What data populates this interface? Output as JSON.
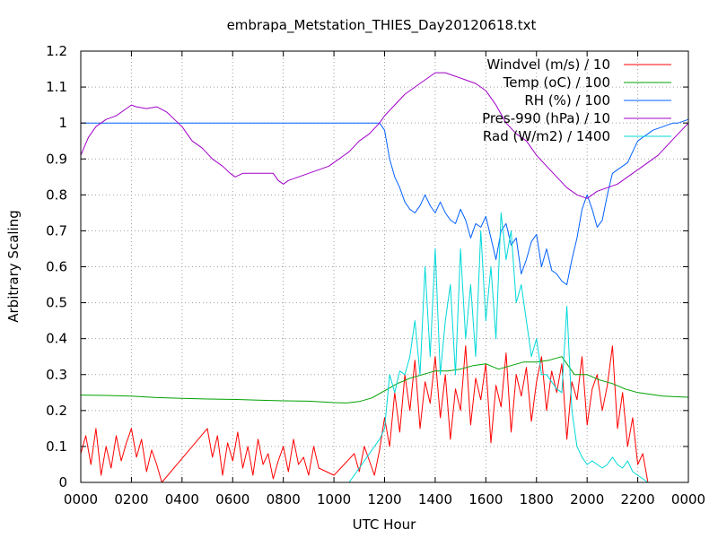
{
  "chart_data": {
    "type": "line",
    "title": "embrapa_Metstation_THIES_Day20120618.txt",
    "xlabel": "UTC Hour",
    "ylabel": "Arbitrary Scaling",
    "xlim": [
      0,
      24
    ],
    "ylim": [
      0,
      1.2
    ],
    "xticks": [
      {
        "v": 0,
        "label": "0000"
      },
      {
        "v": 2,
        "label": "0200"
      },
      {
        "v": 4,
        "label": "0400"
      },
      {
        "v": 6,
        "label": "0600"
      },
      {
        "v": 8,
        "label": "0800"
      },
      {
        "v": 10,
        "label": "1000"
      },
      {
        "v": 12,
        "label": "1200"
      },
      {
        "v": 14,
        "label": "1400"
      },
      {
        "v": 16,
        "label": "1600"
      },
      {
        "v": 18,
        "label": "1800"
      },
      {
        "v": 20,
        "label": "2000"
      },
      {
        "v": 22,
        "label": "2200"
      },
      {
        "v": 24,
        "label": "0000"
      }
    ],
    "yticks": [
      {
        "v": 0,
        "label": "0"
      },
      {
        "v": 0.1,
        "label": "0.1"
      },
      {
        "v": 0.2,
        "label": "0.2"
      },
      {
        "v": 0.3,
        "label": "0.3"
      },
      {
        "v": 0.4,
        "label": "0.4"
      },
      {
        "v": 0.5,
        "label": "0.5"
      },
      {
        "v": 0.6,
        "label": "0.6"
      },
      {
        "v": 0.7,
        "label": "0.7"
      },
      {
        "v": 0.8,
        "label": "0.8"
      },
      {
        "v": 0.9,
        "label": "0.9"
      },
      {
        "v": 1,
        "label": "1"
      },
      {
        "v": 1.1,
        "label": "1.1"
      },
      {
        "v": 1.2,
        "label": "1.2"
      }
    ],
    "grid": true,
    "legend_position": "top-right",
    "series": [
      {
        "name": "Windvel (m/s) / 10",
        "color": "#ff0000",
        "x": [
          0,
          0.2,
          0.4,
          0.6,
          0.8,
          1.0,
          1.2,
          1.4,
          1.6,
          1.8,
          2.0,
          2.2,
          2.4,
          2.6,
          2.8,
          3.0,
          3.2,
          5.0,
          5.2,
          5.4,
          5.6,
          5.8,
          6.0,
          6.2,
          6.4,
          6.6,
          6.8,
          7.0,
          7.2,
          7.4,
          7.6,
          7.8,
          8.0,
          8.2,
          8.4,
          8.6,
          8.8,
          9.0,
          9.2,
          9.4,
          10.0,
          10.4,
          10.8,
          11.0,
          11.2,
          11.4,
          11.6,
          11.8,
          12.0,
          12.2,
          12.4,
          12.6,
          12.8,
          13.0,
          13.2,
          13.4,
          13.6,
          13.8,
          14.0,
          14.2,
          14.4,
          14.6,
          14.8,
          15.0,
          15.2,
          15.4,
          15.6,
          15.8,
          16.0,
          16.2,
          16.4,
          16.6,
          16.8,
          17.0,
          17.2,
          17.4,
          17.6,
          17.8,
          18.0,
          18.2,
          18.4,
          18.6,
          18.8,
          19.0,
          19.2,
          19.4,
          19.6,
          19.8,
          20.0,
          20.2,
          20.4,
          20.6,
          20.8,
          21.0,
          21.2,
          21.4,
          21.6,
          21.8,
          22.0,
          22.2,
          22.4
        ],
        "y": [
          0.08,
          0.13,
          0.05,
          0.15,
          0.02,
          0.1,
          0.04,
          0.13,
          0.06,
          0.11,
          0.15,
          0.07,
          0.12,
          0.03,
          0.09,
          0.05,
          0.0,
          0.15,
          0.07,
          0.13,
          0.02,
          0.11,
          0.06,
          0.14,
          0.04,
          0.1,
          0.02,
          0.12,
          0.05,
          0.08,
          0.01,
          0.06,
          0.1,
          0.03,
          0.12,
          0.05,
          0.07,
          0.02,
          0.1,
          0.04,
          0.02,
          0.05,
          0.08,
          0.03,
          0.1,
          0.06,
          0.02,
          0.09,
          0.18,
          0.1,
          0.25,
          0.14,
          0.3,
          0.2,
          0.34,
          0.15,
          0.28,
          0.22,
          0.35,
          0.18,
          0.3,
          0.12,
          0.26,
          0.2,
          0.38,
          0.16,
          0.29,
          0.23,
          0.33,
          0.11,
          0.27,
          0.21,
          0.36,
          0.14,
          0.3,
          0.24,
          0.32,
          0.17,
          0.28,
          0.35,
          0.2,
          0.31,
          0.25,
          0.33,
          0.12,
          0.28,
          0.23,
          0.35,
          0.16,
          0.26,
          0.3,
          0.2,
          0.27,
          0.38,
          0.15,
          0.25,
          0.1,
          0.18,
          0.05,
          0.08,
          0.0
        ]
      },
      {
        "name": "Temp (oC) / 100",
        "color": "#00a000",
        "x": [
          0,
          1,
          2,
          3,
          4,
          5,
          6,
          7,
          8,
          9,
          10,
          10.5,
          11,
          11.5,
          12,
          12.5,
          13,
          13.5,
          14,
          14.5,
          15,
          15.5,
          16,
          16.5,
          17,
          17.5,
          18,
          18.5,
          19,
          19.5,
          20,
          20.5,
          21,
          21.5,
          22,
          22.5,
          23,
          24
        ],
        "y": [
          0.243,
          0.242,
          0.24,
          0.236,
          0.234,
          0.232,
          0.231,
          0.229,
          0.227,
          0.226,
          0.222,
          0.221,
          0.225,
          0.235,
          0.255,
          0.275,
          0.29,
          0.3,
          0.31,
          0.31,
          0.315,
          0.325,
          0.33,
          0.315,
          0.325,
          0.335,
          0.335,
          0.34,
          0.35,
          0.3,
          0.3,
          0.285,
          0.275,
          0.26,
          0.25,
          0.245,
          0.24,
          0.237
        ]
      },
      {
        "name": "RH (%) / 100",
        "color": "#0060ff",
        "x": [
          0,
          11.8,
          12.0,
          12.2,
          12.4,
          12.6,
          12.8,
          13.0,
          13.2,
          13.4,
          13.6,
          13.8,
          14.0,
          14.2,
          14.4,
          14.6,
          14.8,
          15.0,
          15.2,
          15.4,
          15.6,
          15.8,
          16.0,
          16.2,
          16.4,
          16.6,
          16.8,
          17.0,
          17.2,
          17.4,
          17.6,
          17.8,
          18.0,
          18.2,
          18.4,
          18.6,
          18.8,
          19.0,
          19.2,
          19.4,
          19.6,
          19.8,
          20.0,
          20.2,
          20.4,
          20.6,
          20.8,
          21.0,
          21.2,
          21.4,
          21.6,
          21.8,
          22.0,
          22.2,
          22.4,
          22.6,
          22.8,
          23.0,
          23.2,
          23.4,
          23.6,
          23.8,
          24.0
        ],
        "y": [
          1.0,
          1.0,
          0.98,
          0.9,
          0.85,
          0.82,
          0.78,
          0.76,
          0.75,
          0.77,
          0.8,
          0.77,
          0.75,
          0.78,
          0.75,
          0.73,
          0.72,
          0.76,
          0.73,
          0.68,
          0.72,
          0.71,
          0.74,
          0.68,
          0.62,
          0.7,
          0.72,
          0.66,
          0.68,
          0.58,
          0.62,
          0.67,
          0.69,
          0.6,
          0.65,
          0.59,
          0.58,
          0.56,
          0.55,
          0.62,
          0.68,
          0.76,
          0.8,
          0.76,
          0.71,
          0.73,
          0.8,
          0.86,
          0.87,
          0.88,
          0.89,
          0.92,
          0.95,
          0.96,
          0.97,
          0.98,
          0.985,
          0.99,
          0.995,
          1.0,
          1.0,
          1.005,
          1.01
        ]
      },
      {
        "name": "Pres-990 (hPa) / 10",
        "color": "#a000c8",
        "x": [
          0,
          0.3,
          0.6,
          1.0,
          1.4,
          1.8,
          2.0,
          2.2,
          2.6,
          3.0,
          3.4,
          3.7,
          4.0,
          4.4,
          4.8,
          5.2,
          5.6,
          5.9,
          6.1,
          6.4,
          6.8,
          7.2,
          7.6,
          7.8,
          8.0,
          8.2,
          8.6,
          9.0,
          9.4,
          9.8,
          10.2,
          10.6,
          11.0,
          11.4,
          11.8,
          12.0,
          12.4,
          12.8,
          13.2,
          13.6,
          14.0,
          14.4,
          14.8,
          15.2,
          15.6,
          16.0,
          16.4,
          16.8,
          17.2,
          17.6,
          18.0,
          18.4,
          18.8,
          19.2,
          19.6,
          20.0,
          20.4,
          20.8,
          21.2,
          21.6,
          22.0,
          22.4,
          22.8,
          23.2,
          23.6,
          24.0
        ],
        "y": [
          0.91,
          0.96,
          0.99,
          1.01,
          1.02,
          1.04,
          1.05,
          1.045,
          1.04,
          1.045,
          1.03,
          1.01,
          0.99,
          0.95,
          0.93,
          0.9,
          0.88,
          0.86,
          0.85,
          0.86,
          0.86,
          0.86,
          0.86,
          0.84,
          0.83,
          0.84,
          0.85,
          0.86,
          0.87,
          0.88,
          0.9,
          0.92,
          0.95,
          0.97,
          1.0,
          1.02,
          1.05,
          1.08,
          1.1,
          1.12,
          1.14,
          1.14,
          1.13,
          1.12,
          1.11,
          1.09,
          1.05,
          1.0,
          0.97,
          0.95,
          0.91,
          0.88,
          0.85,
          0.82,
          0.8,
          0.79,
          0.81,
          0.82,
          0.83,
          0.85,
          0.87,
          0.89,
          0.91,
          0.94,
          0.97,
          1.0
        ]
      },
      {
        "name": "Rad (W/m2) / 1400",
        "color": "#00d8d8",
        "x": [
          0,
          10.6,
          10.8,
          11.0,
          11.2,
          11.4,
          11.6,
          11.8,
          12.0,
          12.2,
          12.4,
          12.6,
          12.8,
          13.0,
          13.2,
          13.4,
          13.6,
          13.8,
          14.0,
          14.2,
          14.4,
          14.6,
          14.8,
          15.0,
          15.2,
          15.4,
          15.6,
          15.8,
          16.0,
          16.2,
          16.4,
          16.6,
          16.8,
          17.0,
          17.2,
          17.4,
          17.6,
          17.8,
          18.0,
          18.2,
          18.4,
          18.6,
          18.8,
          19.0,
          19.2,
          19.4,
          19.6,
          19.8,
          20.0,
          20.2,
          20.4,
          20.6,
          20.8,
          21.0,
          21.2,
          21.4,
          21.6,
          21.8,
          22.0,
          22.2,
          22.4,
          24.0
        ],
        "y": [
          0.0,
          0.0,
          0.02,
          0.04,
          0.06,
          0.08,
          0.1,
          0.12,
          0.15,
          0.3,
          0.25,
          0.31,
          0.3,
          0.35,
          0.45,
          0.3,
          0.6,
          0.35,
          0.65,
          0.3,
          0.45,
          0.55,
          0.3,
          0.65,
          0.4,
          0.55,
          0.35,
          0.7,
          0.45,
          0.6,
          0.4,
          0.75,
          0.62,
          0.7,
          0.5,
          0.55,
          0.45,
          0.35,
          0.4,
          0.3,
          0.3,
          0.28,
          0.26,
          0.25,
          0.49,
          0.2,
          0.1,
          0.07,
          0.05,
          0.06,
          0.05,
          0.04,
          0.05,
          0.07,
          0.05,
          0.04,
          0.06,
          0.03,
          0.02,
          0.01,
          0.0,
          0.0
        ]
      }
    ]
  }
}
